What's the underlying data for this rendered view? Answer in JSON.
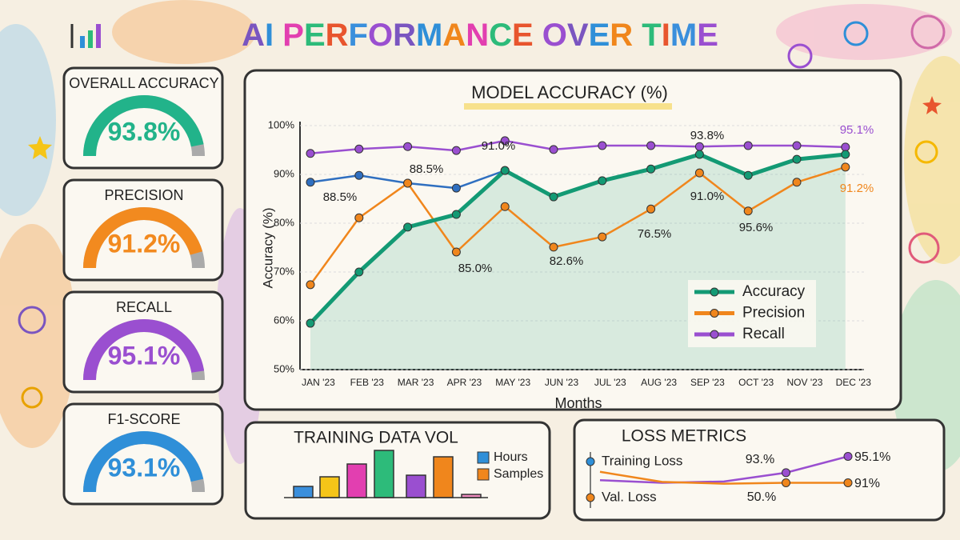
{
  "title": "AI PERFORMANCE OVER TIME",
  "kpis": [
    {
      "label": "OVERALL ACCURACY",
      "value": 93.8,
      "value_label": "93.8%",
      "color": "#22b38a"
    },
    {
      "label": "PRECISION",
      "value": 91.2,
      "value_label": "91.2%",
      "color": "#f28a1f"
    },
    {
      "label": "RECALL",
      "value": 95.1,
      "value_label": "95.1%",
      "color": "#9a4fd0"
    },
    {
      "label": "F1-SCORE",
      "value": 93.1,
      "value_label": "93.1%",
      "color": "#2f8fd8"
    }
  ],
  "kpi_range": [
    0,
    100
  ],
  "chart_data": [
    {
      "type": "line",
      "title": "MODEL ACCURACY (%)",
      "x_label": "Months",
      "y_label": "Accuracy (%)",
      "categories": [
        "JAN '23",
        "FEB '23",
        "MAR '23",
        "APR '23",
        "MAY '23",
        "JUN '23",
        "JUL '23",
        "AUG '23",
        "SEP '23",
        "OCT '23",
        "NOV '23",
        "DEC '23"
      ],
      "ylim": [
        50,
        100
      ],
      "yticks": [
        {
          "value": 50,
          "label": "50%"
        },
        {
          "value": 60,
          "label": "60%"
        },
        {
          "value": 70,
          "label": "70%"
        },
        {
          "value": 80,
          "label": "80%"
        },
        {
          "value": 90,
          "label": "90%"
        },
        {
          "value": 100,
          "label": "100%"
        }
      ],
      "series": [
        {
          "name": "Accuracy",
          "color": "#139a74",
          "values": [
            59.5,
            70,
            79.2,
            81.8,
            90.8,
            85.4,
            88.7,
            91.1,
            94.1,
            89.8,
            93.1,
            94.1
          ]
        },
        {
          "name": "Precision",
          "color": "#f0861c",
          "values": [
            67.4,
            81.1,
            88.2,
            74.1,
            83.4,
            75.1,
            77.2,
            82.9,
            90.3,
            82.5,
            88.4,
            91.5
          ]
        },
        {
          "name": "Recall",
          "color": "#9a4fd0",
          "values": [
            94.3,
            95.2,
            95.7,
            94.9,
            96.9,
            95.1,
            95.9,
            95.9,
            95.7,
            95.9,
            95.9,
            95.6
          ]
        },
        {
          "color": "#2f6fc0",
          "values": [
            88.4,
            89.8,
            88.2,
            87.2,
            90.8,
            null,
            null,
            null,
            null,
            null,
            null,
            null
          ]
        }
      ],
      "annotations": [
        "88.5%",
        "88.5%",
        "91.0%",
        "85.0%",
        "82.6%",
        "76.5%",
        "93.8%",
        "91.0%",
        "95.6%",
        "95.1%",
        "91.2%"
      ]
    },
    {
      "type": "bar",
      "title": "TRAINING DATA VOL",
      "categories": [
        null,
        null,
        null,
        null,
        null,
        null,
        null
      ],
      "values": [
        14,
        26,
        42,
        59,
        28,
        51,
        4
      ],
      "colors": [
        "#3a8fdc",
        "#f5c518",
        "#e23fb0",
        "#2dbb7a",
        "#9a4fd0",
        "#f0861c",
        "#f08cc0"
      ],
      "ylim": [
        0,
        60
      ],
      "legend": [
        {
          "name": "Hours",
          "color": "#2f8fd8"
        },
        {
          "name": "Samples",
          "color": "#f0861c"
        }
      ]
    },
    {
      "type": "line",
      "title": "LOSS METRICS",
      "categories": [
        null,
        null,
        null,
        null,
        null
      ],
      "ylim": [
        0,
        100
      ],
      "series": [
        {
          "name": "Training Loss",
          "color": "#9a4fd0",
          "marker_color": "#2f8fd8",
          "values": [
            36,
            30,
            33,
            53,
            90
          ]
        },
        {
          "name": "Val. Loss",
          "color": "#f0861c",
          "marker_color": "#f0861c",
          "values": [
            55,
            32,
            28,
            30,
            30
          ]
        }
      ],
      "annotations": [
        "93.%",
        "95.1%",
        "50.%",
        "91%"
      ]
    }
  ]
}
